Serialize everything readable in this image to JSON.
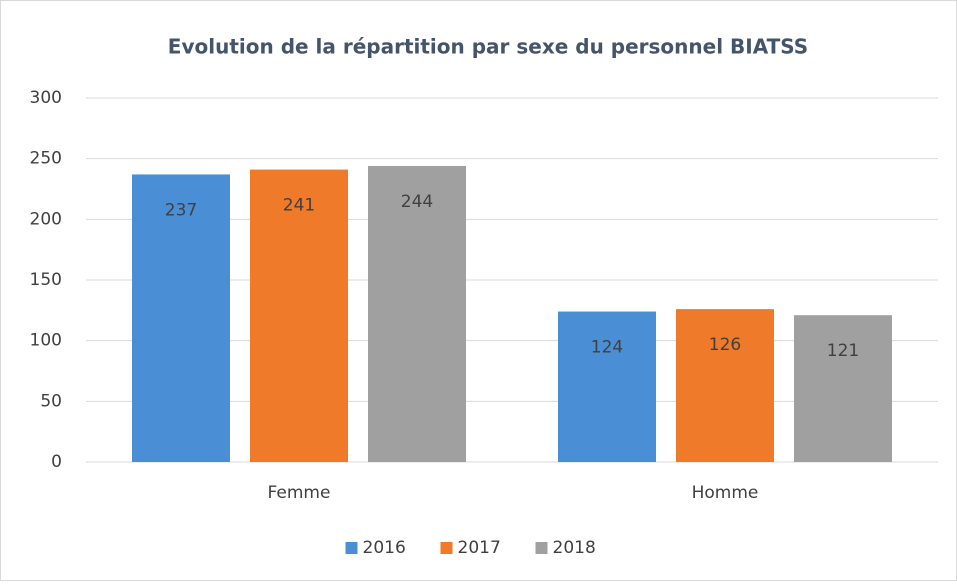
{
  "chart_data": {
    "type": "bar",
    "title": "Evolution de la répartition par sexe du personnel BIATSS",
    "categories": [
      "Femme",
      "Homme"
    ],
    "series": [
      {
        "name": "2016",
        "color": "#4a8fd6",
        "values": [
          237,
          124
        ]
      },
      {
        "name": "2017",
        "color": "#ee7a2a",
        "values": [
          241,
          126
        ]
      },
      {
        "name": "2018",
        "color": "#a0a0a0",
        "values": [
          244,
          121
        ]
      }
    ],
    "ylim": [
      0,
      300
    ],
    "yticks": [
      0,
      50,
      100,
      150,
      200,
      250,
      300
    ],
    "grid": true,
    "legend": "bottom"
  }
}
